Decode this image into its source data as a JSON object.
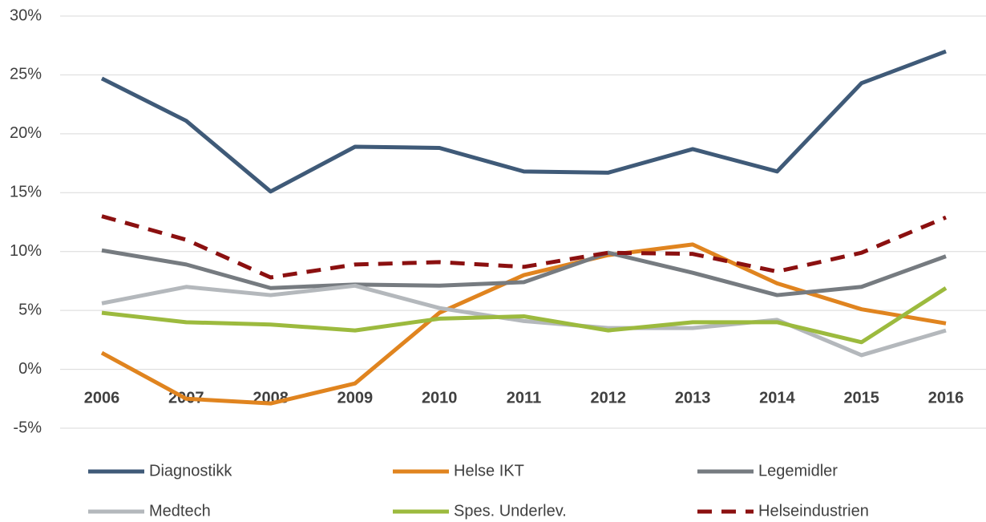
{
  "chart_data": {
    "type": "line",
    "categories": [
      "2006",
      "2007",
      "2008",
      "2009",
      "2010",
      "2011",
      "2012",
      "2013",
      "2014",
      "2015",
      "2016"
    ],
    "ylim": [
      -5,
      30
    ],
    "yticks": [
      {
        "value": -5,
        "label": "-5%"
      },
      {
        "value": 0,
        "label": "0%"
      },
      {
        "value": 5,
        "label": "5%"
      },
      {
        "value": 10,
        "label": "10%"
      },
      {
        "value": 15,
        "label": "15%"
      },
      {
        "value": 20,
        "label": "20%"
      },
      {
        "value": 25,
        "label": "25%"
      },
      {
        "value": 30,
        "label": "30%"
      }
    ],
    "grid": true,
    "legend": "bottom",
    "series": [
      {
        "name": "Diagnostikk",
        "color": "#3f5a78",
        "values": [
          24.7,
          21.1,
          15.1,
          18.9,
          18.8,
          16.8,
          16.7,
          18.7,
          16.8,
          24.3,
          27.0
        ]
      },
      {
        "name": "Helse IKT",
        "color": "#e0841f",
        "values": [
          1.4,
          -2.5,
          -2.9,
          -1.2,
          4.8,
          8.0,
          9.7,
          10.6,
          7.3,
          5.1,
          3.9
        ]
      },
      {
        "name": "Legemidler",
        "color": "#767b80",
        "values": [
          10.1,
          8.9,
          6.9,
          7.2,
          7.1,
          7.4,
          9.9,
          8.2,
          6.3,
          7.0,
          9.6
        ]
      },
      {
        "name": "Medtech",
        "color": "#b4b8bc",
        "values": [
          5.6,
          7.0,
          6.3,
          7.1,
          5.2,
          4.1,
          3.5,
          3.5,
          4.2,
          1.2,
          3.3
        ]
      },
      {
        "name": "Spes. Underlev.",
        "color": "#9cba3e",
        "values": [
          4.8,
          4.0,
          3.8,
          3.3,
          4.3,
          4.5,
          3.3,
          4.0,
          4.0,
          2.3,
          6.9
        ]
      },
      {
        "name": "Helseindustrien",
        "color": "#8b1010",
        "dashed": true,
        "values": [
          13.0,
          11.0,
          7.8,
          8.9,
          9.1,
          8.7,
          9.9,
          9.8,
          8.3,
          9.9,
          12.9
        ]
      }
    ]
  }
}
